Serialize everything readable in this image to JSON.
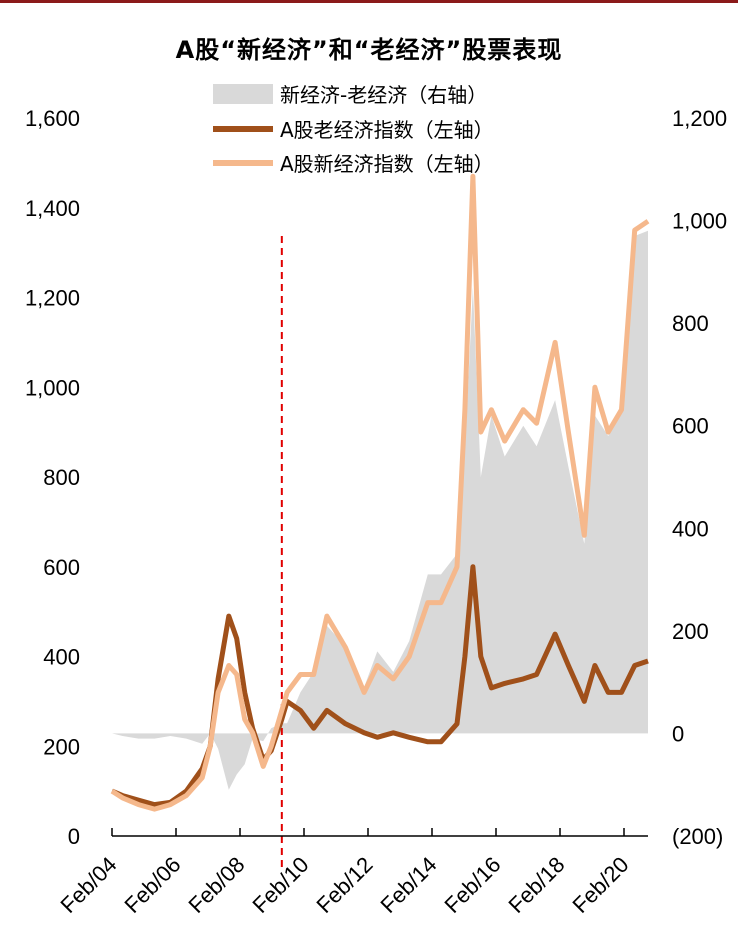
{
  "title": "A股“新经济”和“老经济”股票表现",
  "colors": {
    "top_bar": "#8b1a1a",
    "diff_fill": "#d9d9d9",
    "old_line": "#a0501a",
    "new_line": "#f5b88c",
    "marker_line": "#e00000",
    "negative_label": "#cc0000"
  },
  "chart_data": {
    "type": "line",
    "title": "A股“新经济”和“老经济”股票表现",
    "x_tick_labels": [
      "Feb/04",
      "Feb/06",
      "Feb/08",
      "Feb/10",
      "Feb/12",
      "Feb/14",
      "Feb/16",
      "Feb/18",
      "Feb/20"
    ],
    "x_range": [
      "2004-02",
      "2020-12"
    ],
    "left_axis": {
      "ticks": [
        "0",
        "200",
        "400",
        "600",
        "800",
        "1,000",
        "1,200",
        "1,400",
        "1,600"
      ],
      "range": [
        0,
        1600
      ]
    },
    "right_axis": {
      "ticks": [
        "(200)",
        "0",
        "200",
        "400",
        "600",
        "800",
        "1,000",
        "1,200"
      ],
      "range": [
        -200,
        1200
      ]
    },
    "vertical_marker": {
      "x": "2009-06",
      "style": "dashed"
    },
    "legend": [
      {
        "label": "新经济-老经济（右轴）",
        "kind": "area"
      },
      {
        "label": "A股老经济指数（左轴）",
        "kind": "line"
      },
      {
        "label": "A股新经济指数（左轴）",
        "kind": "line"
      }
    ],
    "series": [
      {
        "name": "A股老经济指数（左轴）",
        "axis": "left",
        "points": [
          [
            "2004-02",
            100
          ],
          [
            "2004-06",
            90
          ],
          [
            "2004-12",
            80
          ],
          [
            "2005-06",
            70
          ],
          [
            "2005-12",
            75
          ],
          [
            "2006-06",
            100
          ],
          [
            "2006-12",
            150
          ],
          [
            "2007-03",
            200
          ],
          [
            "2007-06",
            350
          ],
          [
            "2007-10",
            490
          ],
          [
            "2008-01",
            440
          ],
          [
            "2008-04",
            320
          ],
          [
            "2008-07",
            240
          ],
          [
            "2008-11",
            170
          ],
          [
            "2009-02",
            190
          ],
          [
            "2009-06",
            260
          ],
          [
            "2009-08",
            300
          ],
          [
            "2010-01",
            280
          ],
          [
            "2010-06",
            240
          ],
          [
            "2010-11",
            280
          ],
          [
            "2011-06",
            250
          ],
          [
            "2012-01",
            230
          ],
          [
            "2012-06",
            220
          ],
          [
            "2012-12",
            230
          ],
          [
            "2013-06",
            220
          ],
          [
            "2014-01",
            210
          ],
          [
            "2014-06",
            210
          ],
          [
            "2014-12",
            250
          ],
          [
            "2015-03",
            400
          ],
          [
            "2015-06",
            600
          ],
          [
            "2015-09",
            400
          ],
          [
            "2016-01",
            330
          ],
          [
            "2016-06",
            340
          ],
          [
            "2017-01",
            350
          ],
          [
            "2017-06",
            360
          ],
          [
            "2018-01",
            450
          ],
          [
            "2018-06",
            380
          ],
          [
            "2018-12",
            300
          ],
          [
            "2019-04",
            380
          ],
          [
            "2019-09",
            320
          ],
          [
            "2020-02",
            320
          ],
          [
            "2020-07",
            380
          ],
          [
            "2020-12",
            390
          ]
        ]
      },
      {
        "name": "A股新经济指数（左轴）",
        "axis": "left",
        "points": [
          [
            "2004-02",
            100
          ],
          [
            "2004-06",
            85
          ],
          [
            "2004-12",
            70
          ],
          [
            "2005-06",
            60
          ],
          [
            "2005-12",
            70
          ],
          [
            "2006-06",
            90
          ],
          [
            "2006-12",
            130
          ],
          [
            "2007-03",
            200
          ],
          [
            "2007-06",
            320
          ],
          [
            "2007-10",
            380
          ],
          [
            "2008-01",
            360
          ],
          [
            "2008-04",
            260
          ],
          [
            "2008-07",
            230
          ],
          [
            "2008-11",
            155
          ],
          [
            "2009-02",
            200
          ],
          [
            "2009-06",
            280
          ],
          [
            "2009-08",
            320
          ],
          [
            "2010-01",
            360
          ],
          [
            "2010-06",
            360
          ],
          [
            "2010-11",
            490
          ],
          [
            "2011-06",
            420
          ],
          [
            "2012-01",
            320
          ],
          [
            "2012-06",
            380
          ],
          [
            "2012-12",
            350
          ],
          [
            "2013-06",
            400
          ],
          [
            "2014-01",
            520
          ],
          [
            "2014-06",
            520
          ],
          [
            "2014-12",
            600
          ],
          [
            "2015-03",
            950
          ],
          [
            "2015-06",
            1470
          ],
          [
            "2015-09",
            900
          ],
          [
            "2016-01",
            950
          ],
          [
            "2016-06",
            880
          ],
          [
            "2017-01",
            950
          ],
          [
            "2017-06",
            920
          ],
          [
            "2018-01",
            1100
          ],
          [
            "2018-06",
            900
          ],
          [
            "2018-12",
            670
          ],
          [
            "2019-04",
            1000
          ],
          [
            "2019-09",
            900
          ],
          [
            "2020-02",
            950
          ],
          [
            "2020-07",
            1350
          ],
          [
            "2020-12",
            1370
          ]
        ]
      },
      {
        "name": "新经济-老经济（右轴）",
        "axis": "right",
        "type": "area",
        "derived_from": "A股新经济指数（左轴） minus A股老经济指数（左轴）"
      }
    ]
  }
}
